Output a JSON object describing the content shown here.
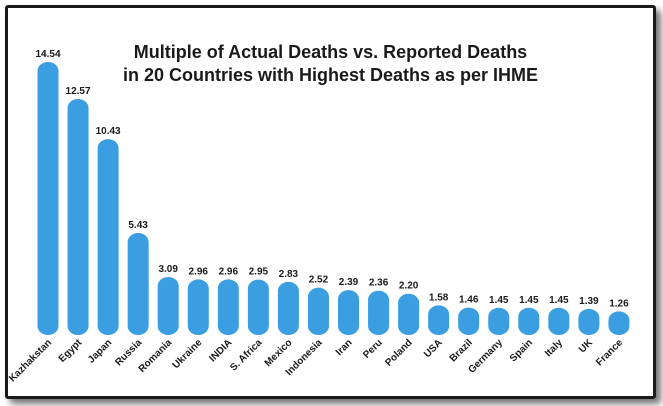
{
  "chart_data": {
    "type": "bar",
    "title_line1": "Multiple of Actual Deaths vs. Reported Deaths",
    "title_line2": "in 20 Countries with Highest Deaths as per IHME",
    "categories": [
      "Kazhakstan",
      "Egypt",
      "Japan",
      "Russia",
      "Romania",
      "Ukraine",
      "INDIA",
      "S. Africa",
      "Mexico",
      "Indonesia",
      "Iran",
      "Peru",
      "Poland",
      "USA",
      "Brazil",
      "Germany",
      "Spain",
      "Italy",
      "UK",
      "France"
    ],
    "values": [
      14.54,
      12.57,
      10.43,
      5.43,
      3.09,
      2.96,
      2.96,
      2.95,
      2.83,
      2.52,
      2.39,
      2.36,
      2.2,
      1.58,
      1.46,
      1.45,
      1.45,
      1.45,
      1.39,
      1.26
    ],
    "value_labels": [
      "14.54",
      "12.57",
      "10.43",
      "5.43",
      "3.09",
      "2.96",
      "2.96",
      "2.95",
      "2.83",
      "2.52",
      "2.39",
      "2.36",
      "2.20",
      "1.58",
      "1.46",
      "1.45",
      "1.45",
      "1.45",
      "1.39",
      "1.26"
    ],
    "ylim": [
      0,
      14.54
    ],
    "grid": false,
    "legend": "none",
    "bar_color": "#3a9ee0"
  }
}
